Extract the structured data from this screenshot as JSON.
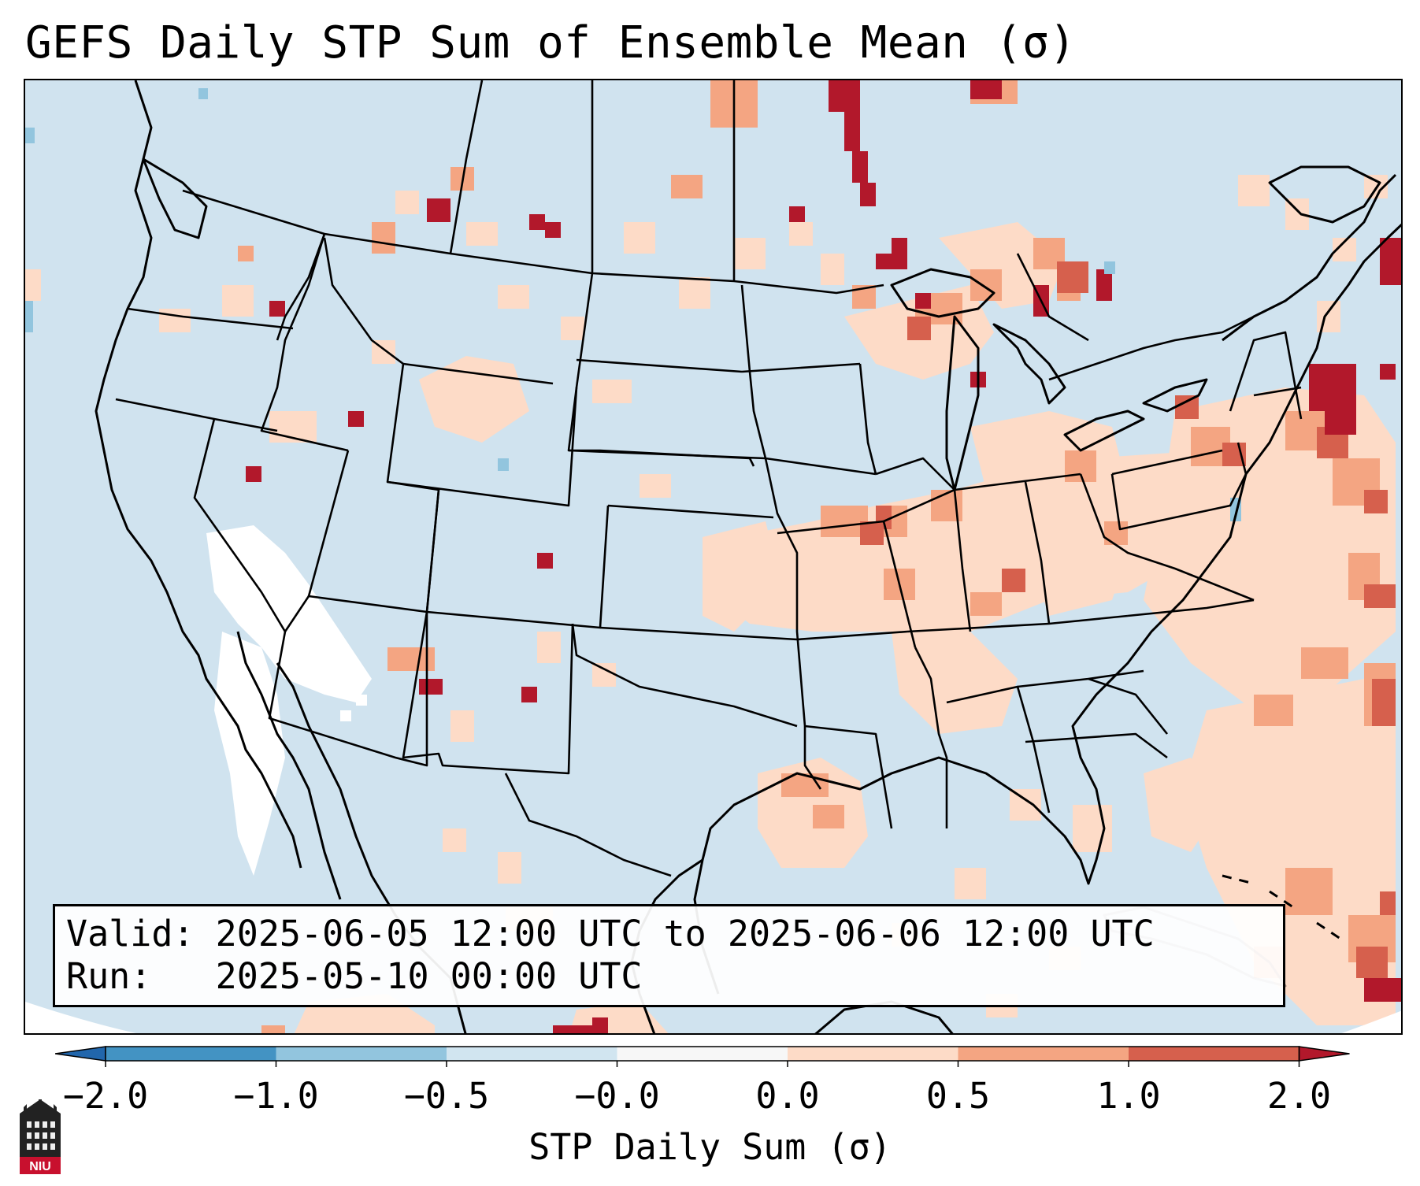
{
  "title": "GEFS Daily STP Sum of Ensemble Mean (σ)",
  "info": {
    "valid_label": "Valid:",
    "valid_value": "2025-06-05 12:00 UTC to 2025-06-06 12:00 UTC",
    "run_label": "Run:",
    "run_value": "2025-05-10 00:00 UTC"
  },
  "colorbar": {
    "label": "STP Daily Sum (σ)",
    "ticks": [
      "−2.0",
      "−1.0",
      "−0.5",
      "−0.0",
      "0.0",
      "0.5",
      "1.0",
      "2.0"
    ],
    "bins": [
      {
        "range": "≤ -2.0",
        "color": "#2166ac"
      },
      {
        "range": "-2.0 to -1.0",
        "color": "#4393c3"
      },
      {
        "range": "-1.0 to -0.5",
        "color": "#92c5de"
      },
      {
        "range": "-0.5 to -0.0",
        "color": "#d1e5f0"
      },
      {
        "range": "-0.0 to 0.0",
        "color": "#f7f7f7"
      },
      {
        "range": "0.0 to 0.5",
        "color": "#fddbc7"
      },
      {
        "range": "0.5 to 1.0",
        "color": "#f4a582"
      },
      {
        "range": "1.0 to 2.0",
        "color": "#d6604d"
      },
      {
        "range": "≥ 2.0",
        "color": "#b2182b"
      }
    ]
  },
  "logo": {
    "text": "NIU",
    "icon": "university-building-icon",
    "color": "#c8102e"
  },
  "map": {
    "projection": "Lambert Conformal",
    "region": "CONUS",
    "ocean_color": "#d0e3ef"
  }
}
